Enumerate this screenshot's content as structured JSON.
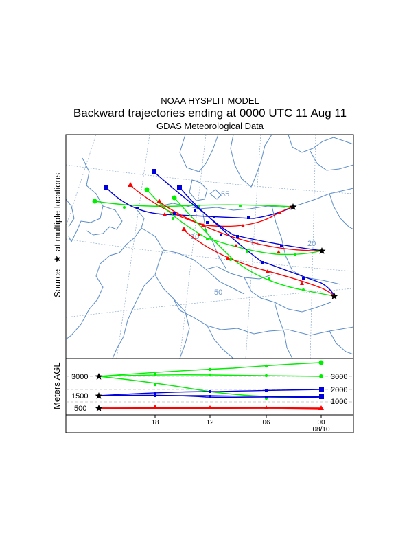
{
  "header": {
    "line1": "NOAA HYSPLIT MODEL",
    "line2": "Backward trajectories ending at 0000 UTC 11 Aug 11",
    "line3": "GDAS Meteorological Data"
  },
  "map": {
    "side_label_prefix": "Source",
    "side_label_suffix": "at multiple locations",
    "source_symbol": "★",
    "grid_labels": [
      "55",
      "15",
      "20",
      "10",
      "50"
    ],
    "colors": {
      "red": "#ff0000",
      "blue": "#0000dd",
      "green": "#00ee00",
      "coast": "#5b8cc8",
      "grid": "#8aaad0"
    }
  },
  "profile": {
    "ylabel": "Meters AGL",
    "left_levels": [
      "3000",
      "1500",
      "500"
    ],
    "right_levels": [
      "3000",
      "2000",
      "1000"
    ],
    "time_ticks": [
      "18",
      "12",
      "06",
      "00"
    ],
    "date_label": "08/10"
  }
}
